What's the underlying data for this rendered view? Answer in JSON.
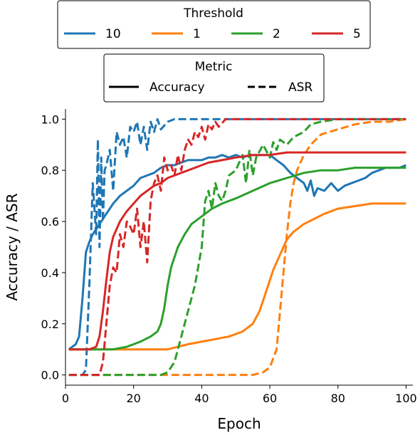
{
  "chart_data": {
    "type": "line",
    "title": "",
    "xlabel": "Epoch",
    "ylabel": "Accuracy / ASR",
    "xlim": [
      0,
      102
    ],
    "ylim": [
      -0.04,
      1.04
    ],
    "xticks": [
      0,
      20,
      40,
      60,
      80,
      100
    ],
    "yticks": [
      0.0,
      0.2,
      0.4,
      0.6,
      0.8,
      1.0
    ],
    "grid": false,
    "legends": [
      {
        "title": "Threshold",
        "placement": "top-center",
        "entries": [
          {
            "label": "10",
            "color": "#1f77b4",
            "style": "solid"
          },
          {
            "label": "1",
            "color": "#ff7f0e",
            "style": "solid"
          },
          {
            "label": "2",
            "color": "#2ca02c",
            "style": "solid"
          },
          {
            "label": "5",
            "color": "#d62728",
            "style": "solid"
          }
        ]
      },
      {
        "title": "Metric",
        "placement": "top-center",
        "entries": [
          {
            "label": "Accuracy",
            "color": "#000000",
            "style": "solid"
          },
          {
            "label": "ASR",
            "color": "#000000",
            "style": "dashed"
          }
        ]
      }
    ],
    "series": [
      {
        "threshold": "10",
        "metric": "Accuracy",
        "color": "#1f77b4",
        "style": "solid",
        "x": [
          1,
          2,
          3,
          4,
          5,
          6,
          7,
          8,
          9,
          10,
          12,
          14,
          16,
          18,
          20,
          22,
          24,
          26,
          28,
          30,
          32,
          34,
          36,
          38,
          40,
          42,
          44,
          46,
          48,
          50,
          52,
          54,
          56,
          58,
          60,
          62,
          64,
          66,
          68,
          70,
          71,
          72,
          73,
          74,
          76,
          78,
          80,
          82,
          84,
          86,
          88,
          90,
          92,
          94,
          96,
          98,
          100
        ],
        "y": [
          0.1,
          0.11,
          0.12,
          0.15,
          0.3,
          0.48,
          0.52,
          0.55,
          0.57,
          0.59,
          0.63,
          0.67,
          0.7,
          0.72,
          0.74,
          0.77,
          0.78,
          0.79,
          0.81,
          0.82,
          0.82,
          0.83,
          0.84,
          0.84,
          0.84,
          0.85,
          0.85,
          0.86,
          0.85,
          0.86,
          0.85,
          0.86,
          0.86,
          0.86,
          0.86,
          0.84,
          0.82,
          0.79,
          0.77,
          0.75,
          0.72,
          0.76,
          0.7,
          0.73,
          0.72,
          0.75,
          0.72,
          0.74,
          0.75,
          0.76,
          0.77,
          0.79,
          0.8,
          0.81,
          0.81,
          0.81,
          0.82
        ]
      },
      {
        "threshold": "10",
        "metric": "ASR",
        "color": "#1f77b4",
        "style": "dashed",
        "x": [
          1,
          2,
          3,
          4,
          5,
          6,
          7,
          8,
          9,
          9.5,
          10,
          10.5,
          11,
          11.5,
          12,
          13,
          14,
          15,
          16,
          17,
          18,
          19,
          20,
          21,
          22,
          23,
          24,
          25,
          26,
          27,
          28,
          30,
          32,
          34,
          36,
          38,
          40,
          45,
          50,
          60,
          70,
          80,
          90,
          100
        ],
        "y": [
          0.0,
          0.0,
          0.0,
          0.0,
          0.0,
          0.02,
          0.35,
          0.75,
          0.55,
          0.92,
          0.5,
          0.85,
          0.6,
          0.8,
          0.82,
          0.88,
          0.72,
          0.95,
          0.9,
          0.93,
          0.85,
          0.97,
          0.95,
          0.99,
          0.9,
          0.97,
          0.88,
          0.99,
          0.95,
          1.0,
          0.96,
          0.99,
          1.0,
          1.0,
          1.0,
          1.0,
          1.0,
          1.0,
          1.0,
          1.0,
          1.0,
          1.0,
          1.0,
          1.0
        ]
      },
      {
        "threshold": "1",
        "metric": "Accuracy",
        "color": "#ff7f0e",
        "style": "solid",
        "x": [
          1,
          5,
          10,
          15,
          20,
          25,
          30,
          33,
          36,
          40,
          44,
          48,
          52,
          55,
          57,
          59,
          61,
          63,
          65,
          67,
          70,
          73,
          76,
          80,
          85,
          90,
          95,
          100
        ],
        "y": [
          0.1,
          0.1,
          0.1,
          0.1,
          0.1,
          0.1,
          0.1,
          0.11,
          0.12,
          0.13,
          0.14,
          0.15,
          0.17,
          0.2,
          0.25,
          0.33,
          0.41,
          0.47,
          0.53,
          0.56,
          0.59,
          0.61,
          0.63,
          0.65,
          0.66,
          0.67,
          0.67,
          0.67
        ]
      },
      {
        "threshold": "1",
        "metric": "ASR",
        "color": "#ff7f0e",
        "style": "dashed",
        "x": [
          1,
          10,
          20,
          30,
          40,
          50,
          55,
          58,
          60,
          62,
          63,
          64,
          65,
          66,
          67,
          68,
          70,
          72,
          75,
          80,
          85,
          90,
          95,
          100
        ],
        "y": [
          0.0,
          0.0,
          0.0,
          0.0,
          0.0,
          0.0,
          0.0,
          0.01,
          0.03,
          0.1,
          0.25,
          0.4,
          0.55,
          0.67,
          0.75,
          0.8,
          0.86,
          0.9,
          0.94,
          0.96,
          0.98,
          0.99,
          0.99,
          1.0
        ]
      },
      {
        "threshold": "2",
        "metric": "Accuracy",
        "color": "#2ca02c",
        "style": "solid",
        "x": [
          1,
          5,
          10,
          14,
          18,
          22,
          25,
          27,
          28,
          29,
          30,
          31,
          33,
          35,
          37,
          40,
          43,
          46,
          50,
          55,
          60,
          65,
          70,
          75,
          80,
          85,
          90,
          95,
          100
        ],
        "y": [
          0.1,
          0.1,
          0.1,
          0.1,
          0.11,
          0.13,
          0.15,
          0.17,
          0.2,
          0.26,
          0.35,
          0.42,
          0.5,
          0.55,
          0.59,
          0.62,
          0.65,
          0.67,
          0.69,
          0.72,
          0.75,
          0.77,
          0.79,
          0.8,
          0.8,
          0.81,
          0.81,
          0.81,
          0.81
        ]
      },
      {
        "threshold": "2",
        "metric": "ASR",
        "color": "#2ca02c",
        "style": "dashed",
        "x": [
          1,
          10,
          20,
          28,
          30,
          32,
          34,
          36,
          38,
          40,
          41,
          42,
          43,
          44,
          45,
          46,
          47,
          48,
          50,
          52,
          53,
          54,
          55,
          56,
          58,
          60,
          61,
          62,
          63,
          65,
          67,
          70,
          72,
          75,
          80,
          85,
          90,
          100
        ],
        "y": [
          0.0,
          0.0,
          0.0,
          0.0,
          0.01,
          0.05,
          0.15,
          0.25,
          0.35,
          0.5,
          0.68,
          0.72,
          0.65,
          0.75,
          0.7,
          0.68,
          0.72,
          0.78,
          0.8,
          0.86,
          0.75,
          0.88,
          0.78,
          0.85,
          0.9,
          0.85,
          0.91,
          0.88,
          0.92,
          0.9,
          0.93,
          0.95,
          0.98,
          0.99,
          1.0,
          1.0,
          1.0,
          1.0
        ]
      },
      {
        "threshold": "5",
        "metric": "Accuracy",
        "color": "#d62728",
        "style": "solid",
        "x": [
          1,
          4,
          7,
          9,
          10,
          11,
          12,
          13,
          14,
          16,
          18,
          20,
          22,
          24,
          26,
          28,
          30,
          34,
          38,
          42,
          46,
          50,
          55,
          60,
          65,
          70,
          75,
          80,
          85,
          90,
          95,
          100
        ],
        "y": [
          0.1,
          0.1,
          0.1,
          0.11,
          0.15,
          0.25,
          0.37,
          0.48,
          0.54,
          0.6,
          0.64,
          0.67,
          0.7,
          0.72,
          0.74,
          0.75,
          0.77,
          0.79,
          0.81,
          0.83,
          0.84,
          0.85,
          0.86,
          0.86,
          0.87,
          0.87,
          0.87,
          0.87,
          0.87,
          0.87,
          0.87,
          0.87
        ]
      },
      {
        "threshold": "5",
        "metric": "ASR",
        "color": "#d62728",
        "style": "dashed",
        "x": [
          1,
          5,
          10,
          11,
          12,
          13,
          14,
          15,
          16,
          17,
          18,
          19,
          20,
          21,
          22,
          23,
          24,
          25,
          26,
          27,
          28,
          29,
          30,
          31,
          32,
          33,
          34,
          35,
          36,
          37,
          38,
          39,
          40,
          41,
          42,
          43,
          44,
          45,
          47,
          50,
          55,
          60,
          100
        ],
        "y": [
          0.0,
          0.0,
          0.0,
          0.05,
          0.2,
          0.35,
          0.42,
          0.4,
          0.55,
          0.5,
          0.6,
          0.58,
          0.55,
          0.65,
          0.5,
          0.6,
          0.44,
          0.68,
          0.75,
          0.78,
          0.72,
          0.85,
          0.8,
          0.82,
          0.78,
          0.86,
          0.8,
          0.88,
          0.92,
          0.9,
          0.95,
          0.93,
          0.97,
          0.92,
          0.98,
          0.96,
          0.99,
          0.97,
          1.0,
          1.0,
          1.0,
          1.0,
          1.0
        ]
      }
    ]
  }
}
